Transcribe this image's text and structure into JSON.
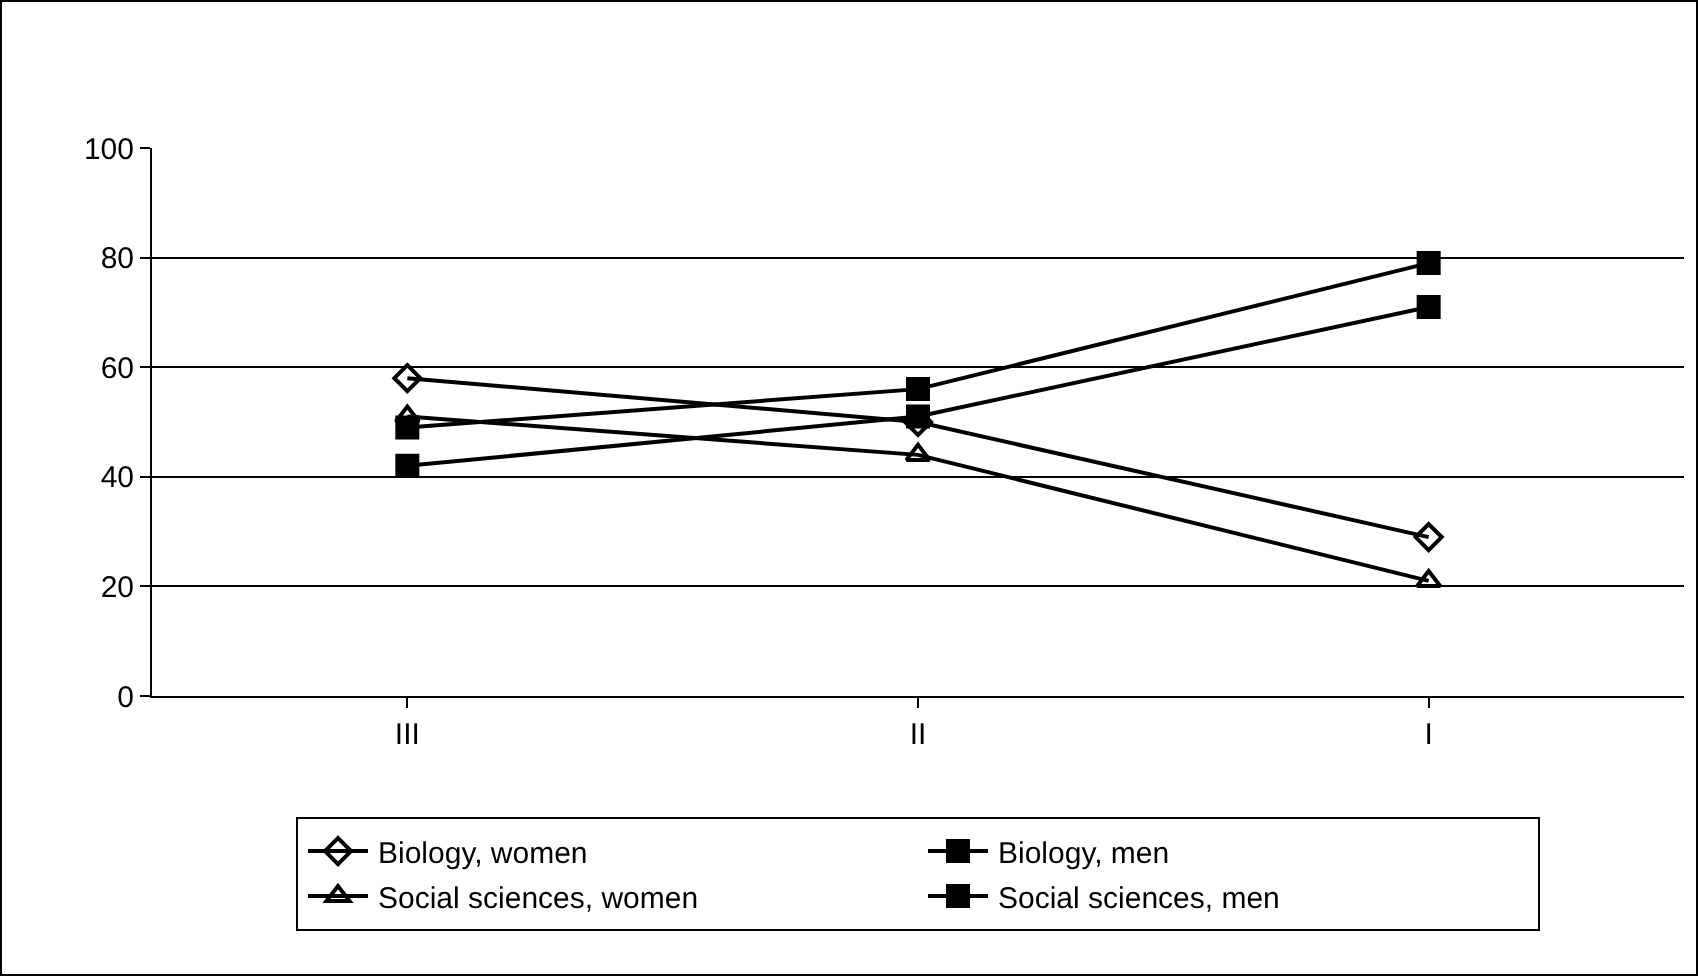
{
  "chart_data": {
    "type": "line",
    "categories": [
      "III",
      "II",
      "I"
    ],
    "series": [
      {
        "name": "Biology, women",
        "color": "#000000",
        "marker": "diamond",
        "values": [
          58,
          50,
          29
        ]
      },
      {
        "name": "Biology, men",
        "color": "#000000",
        "marker": "square",
        "values": [
          49,
          56,
          79
        ]
      },
      {
        "name": "Social sciences, women",
        "color": "#000000",
        "marker": "triangle",
        "values": [
          51,
          44,
          21
        ]
      },
      {
        "name": "Social sciences, men",
        "color": "#000000",
        "marker": "square",
        "values": [
          42,
          51,
          71
        ]
      }
    ],
    "ylim": [
      0,
      100
    ],
    "yticks": [
      0,
      20,
      40,
      60,
      80,
      100
    ],
    "grid": "y",
    "legend": "bottom",
    "line_style": "solid"
  }
}
